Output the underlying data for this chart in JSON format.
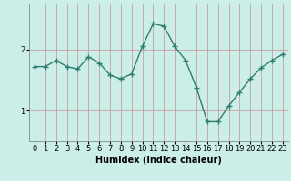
{
  "x": [
    0,
    1,
    2,
    3,
    4,
    5,
    6,
    7,
    8,
    9,
    10,
    11,
    12,
    13,
    14,
    15,
    16,
    17,
    18,
    19,
    20,
    21,
    22,
    23
  ],
  "y": [
    1.72,
    1.72,
    1.82,
    1.72,
    1.68,
    1.88,
    1.78,
    1.58,
    1.52,
    1.6,
    2.05,
    2.42,
    2.38,
    2.05,
    1.82,
    1.38,
    0.82,
    0.82,
    1.08,
    1.3,
    1.52,
    1.7,
    1.82,
    1.92
  ],
  "line_color": "#2e7d6e",
  "marker": "+",
  "marker_size": 4,
  "bg_color": "#cceee8",
  "grid_color_v": "#c8a0a0",
  "grid_color_h": "#c8a0a0",
  "xlabel": "Humidex (Indice chaleur)",
  "xlim": [
    -0.5,
    23.5
  ],
  "ylim": [
    0.5,
    2.75
  ],
  "yticks": [
    1,
    2
  ],
  "xtick_labels": [
    "0",
    "1",
    "2",
    "3",
    "4",
    "5",
    "6",
    "7",
    "8",
    "9",
    "10",
    "11",
    "12",
    "13",
    "14",
    "15",
    "16",
    "17",
    "18",
    "19",
    "20",
    "21",
    "22",
    "23"
  ],
  "xlabel_fontsize": 7,
  "tick_fontsize": 6,
  "line_width": 1.0
}
